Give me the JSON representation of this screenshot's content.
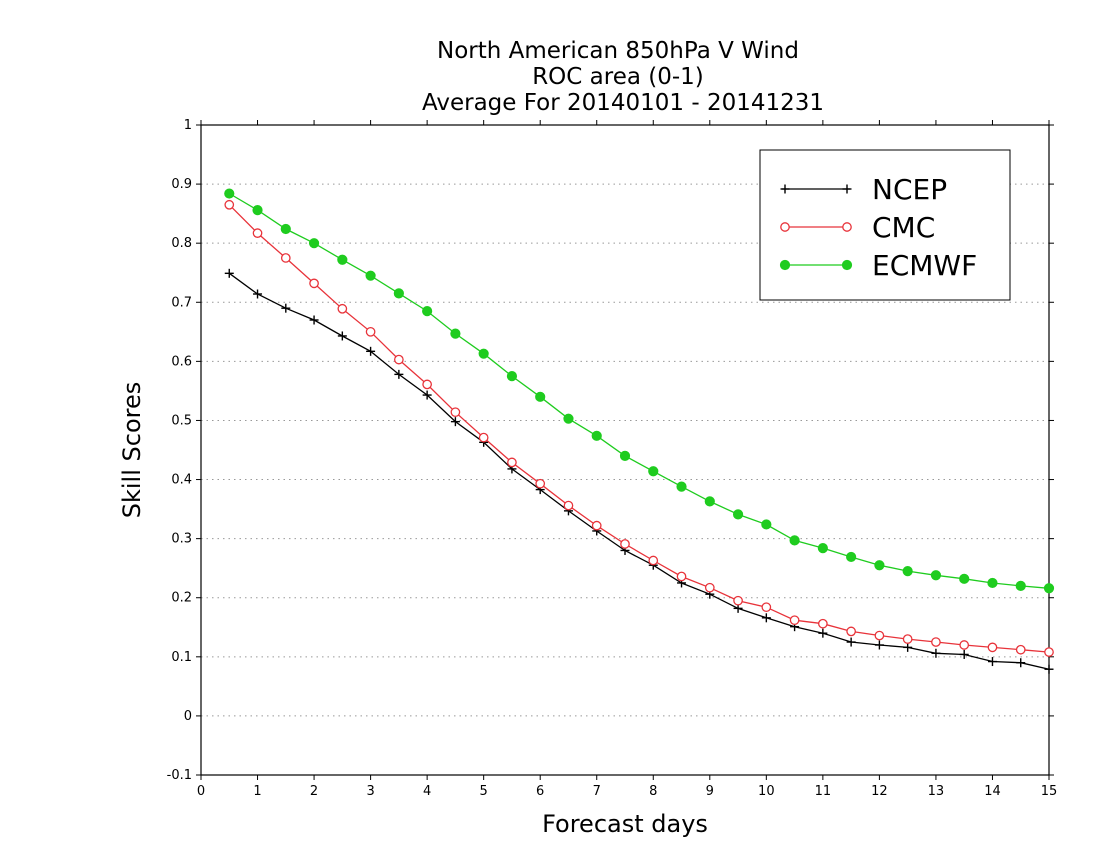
{
  "chart_data": {
    "type": "line",
    "title_lines": [
      "North American 850hPa V Wind",
      "ROC area (0-1)",
      "Average For 20140101 - 20141231"
    ],
    "xlabel": "Forecast days",
    "ylabel": "Skill Scores",
    "xlim": [
      0,
      15
    ],
    "ylim": [
      -0.1,
      1
    ],
    "xticks": [
      0,
      1,
      2,
      3,
      4,
      5,
      6,
      7,
      8,
      9,
      10,
      11,
      12,
      13,
      14,
      15
    ],
    "xtick_labels": [
      "0",
      "1",
      "2",
      "3",
      "4",
      "5",
      "6",
      "7",
      "8",
      "9",
      "10",
      "11",
      "12",
      "13",
      "14",
      "15"
    ],
    "yticks": [
      -0.1,
      0,
      0.1,
      0.2,
      0.3,
      0.4,
      0.5,
      0.6,
      0.7,
      0.8,
      0.9,
      1
    ],
    "ytick_labels": [
      "-0.1",
      "0",
      "0.1",
      "0.2",
      "0.3",
      "0.4",
      "0.5",
      "0.6",
      "0.7",
      "0.8",
      "0.9",
      "1"
    ],
    "grid": "horizontal dotted",
    "legend_position": "top-right",
    "x": [
      0.5,
      1,
      1.5,
      2,
      2.5,
      3,
      3.5,
      4,
      4.5,
      5,
      5.5,
      6,
      6.5,
      7,
      7.5,
      8,
      8.5,
      9,
      9.5,
      10,
      10.5,
      11,
      11.5,
      12,
      12.5,
      13,
      13.5,
      14,
      14.5,
      15
    ],
    "series": [
      {
        "name": "NCEP",
        "color": "#000000",
        "marker": "plus",
        "values": [
          0.749,
          0.714,
          0.69,
          0.67,
          0.643,
          0.617,
          0.578,
          0.543,
          0.498,
          0.463,
          0.418,
          0.383,
          0.347,
          0.313,
          0.28,
          0.255,
          0.225,
          0.206,
          0.182,
          0.166,
          0.151,
          0.14,
          0.125,
          0.12,
          0.116,
          0.106,
          0.104,
          0.092,
          0.09,
          0.079
        ]
      },
      {
        "name": "CMC",
        "color": "#e8333a",
        "marker": "open-circle",
        "values": [
          0.865,
          0.817,
          0.775,
          0.732,
          0.689,
          0.65,
          0.603,
          0.561,
          0.514,
          0.471,
          0.429,
          0.393,
          0.356,
          0.322,
          0.291,
          0.263,
          0.236,
          0.217,
          0.195,
          0.184,
          0.162,
          0.156,
          0.143,
          0.136,
          0.13,
          0.125,
          0.12,
          0.116,
          0.112,
          0.108
        ]
      },
      {
        "name": "ECMWF",
        "color": "#1fcc1f",
        "marker": "filled-circle",
        "values": [
          0.884,
          0.856,
          0.824,
          0.8,
          0.772,
          0.745,
          0.715,
          0.685,
          0.647,
          0.613,
          0.575,
          0.54,
          0.503,
          0.474,
          0.44,
          0.414,
          0.388,
          0.363,
          0.341,
          0.324,
          0.297,
          0.284,
          0.269,
          0.255,
          0.245,
          0.238,
          0.232,
          0.225,
          0.22,
          0.216
        ]
      }
    ]
  }
}
